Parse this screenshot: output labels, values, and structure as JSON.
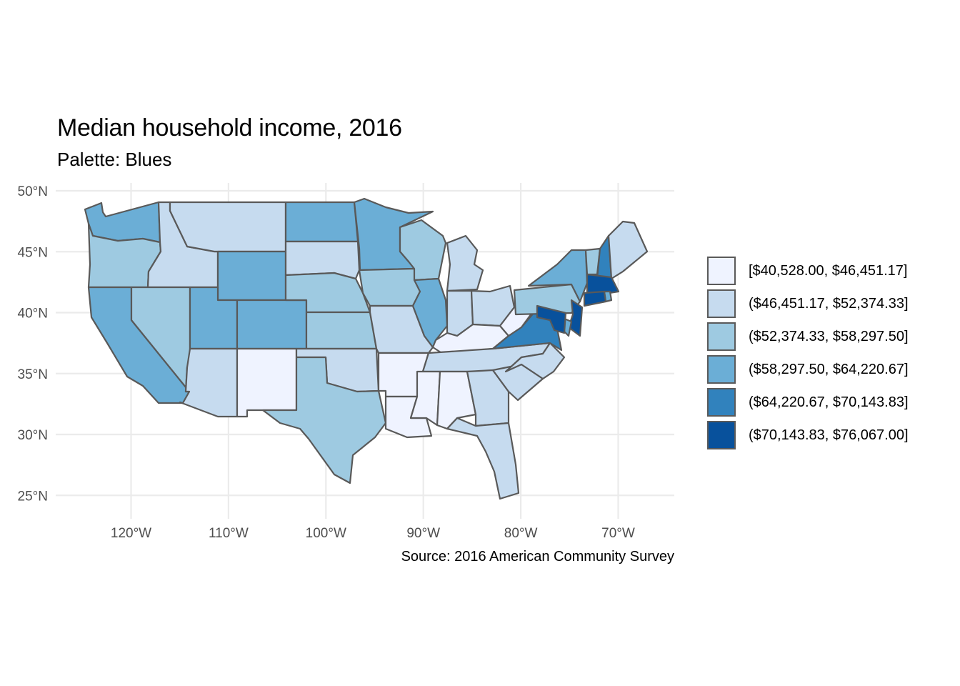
{
  "title": "Median household income, 2016",
  "subtitle": "Palette: Blues",
  "caption": "Source: 2016 American Community Survey",
  "axes": {
    "x_ticks": [
      {
        "value": -120,
        "label": "120°W"
      },
      {
        "value": -110,
        "label": "110°W"
      },
      {
        "value": -100,
        "label": "100°W"
      },
      {
        "value": -90,
        "label": "90°W"
      },
      {
        "value": -80,
        "label": "80°W"
      },
      {
        "value": -70,
        "label": "70°W"
      }
    ],
    "y_ticks": [
      {
        "value": 50,
        "label": "50°N"
      },
      {
        "value": 45,
        "label": "45°N"
      },
      {
        "value": 40,
        "label": "40°N"
      },
      {
        "value": 35,
        "label": "35°N"
      },
      {
        "value": 30,
        "label": "30°N"
      },
      {
        "value": 25,
        "label": "25°N"
      }
    ],
    "grid": true
  },
  "legend": {
    "placement": "right",
    "items": [
      {
        "label": "[$40,528.00, $46,451.17]",
        "color": "#eff3ff"
      },
      {
        "label": "($46,451.17, $52,374.33]",
        "color": "#c6dbef"
      },
      {
        "label": "($52,374.33, $58,297.50]",
        "color": "#9ecae1"
      },
      {
        "label": "($58,297.50, $64,220.67]",
        "color": "#6baed6"
      },
      {
        "label": "($64,220.67, $70,143.83]",
        "color": "#3182bd"
      },
      {
        "label": "($70,143.83, $76,067.00]",
        "color": "#08519c"
      }
    ]
  },
  "chart_data": {
    "type": "choropleth",
    "title": "Median household income, 2016",
    "subtitle": "Palette: Blues",
    "xlim": [
      -128,
      -64
    ],
    "ylim": [
      23.5,
      50.5
    ],
    "states": [
      {
        "name": "Washington",
        "bin": 3
      },
      {
        "name": "Oregon",
        "bin": 2
      },
      {
        "name": "California",
        "bin": 3
      },
      {
        "name": "Idaho",
        "bin": 1
      },
      {
        "name": "Nevada",
        "bin": 2
      },
      {
        "name": "Montana",
        "bin": 1
      },
      {
        "name": "Wyoming",
        "bin": 3
      },
      {
        "name": "Utah",
        "bin": 3
      },
      {
        "name": "Arizona",
        "bin": 1
      },
      {
        "name": "Colorado",
        "bin": 3
      },
      {
        "name": "New Mexico",
        "bin": 0
      },
      {
        "name": "North Dakota",
        "bin": 3
      },
      {
        "name": "South Dakota",
        "bin": 1
      },
      {
        "name": "Nebraska",
        "bin": 2
      },
      {
        "name": "Kansas",
        "bin": 2
      },
      {
        "name": "Oklahoma",
        "bin": 1
      },
      {
        "name": "Texas",
        "bin": 2
      },
      {
        "name": "Minnesota",
        "bin": 3
      },
      {
        "name": "Iowa",
        "bin": 2
      },
      {
        "name": "Missouri",
        "bin": 1
      },
      {
        "name": "Arkansas",
        "bin": 0
      },
      {
        "name": "Louisiana",
        "bin": 0
      },
      {
        "name": "Wisconsin",
        "bin": 2
      },
      {
        "name": "Illinois",
        "bin": 3
      },
      {
        "name": "Michigan",
        "bin": 1
      },
      {
        "name": "Indiana",
        "bin": 1
      },
      {
        "name": "Ohio",
        "bin": 1
      },
      {
        "name": "Kentucky",
        "bin": 0
      },
      {
        "name": "Tennessee",
        "bin": 1
      },
      {
        "name": "Mississippi",
        "bin": 0
      },
      {
        "name": "Alabama",
        "bin": 0
      },
      {
        "name": "Georgia",
        "bin": 1
      },
      {
        "name": "Florida",
        "bin": 1
      },
      {
        "name": "South Carolina",
        "bin": 1
      },
      {
        "name": "North Carolina",
        "bin": 1
      },
      {
        "name": "Virginia",
        "bin": 4
      },
      {
        "name": "West Virginia",
        "bin": 0
      },
      {
        "name": "Pennsylvania",
        "bin": 2
      },
      {
        "name": "New York",
        "bin": 3
      },
      {
        "name": "Vermont",
        "bin": 2
      },
      {
        "name": "New Hampshire",
        "bin": 4
      },
      {
        "name": "Maine",
        "bin": 1
      },
      {
        "name": "Massachusetts",
        "bin": 5
      },
      {
        "name": "Rhode Island",
        "bin": 3
      },
      {
        "name": "Connecticut",
        "bin": 5
      },
      {
        "name": "New Jersey",
        "bin": 5
      },
      {
        "name": "Delaware",
        "bin": 3
      },
      {
        "name": "Maryland",
        "bin": 5
      }
    ]
  }
}
